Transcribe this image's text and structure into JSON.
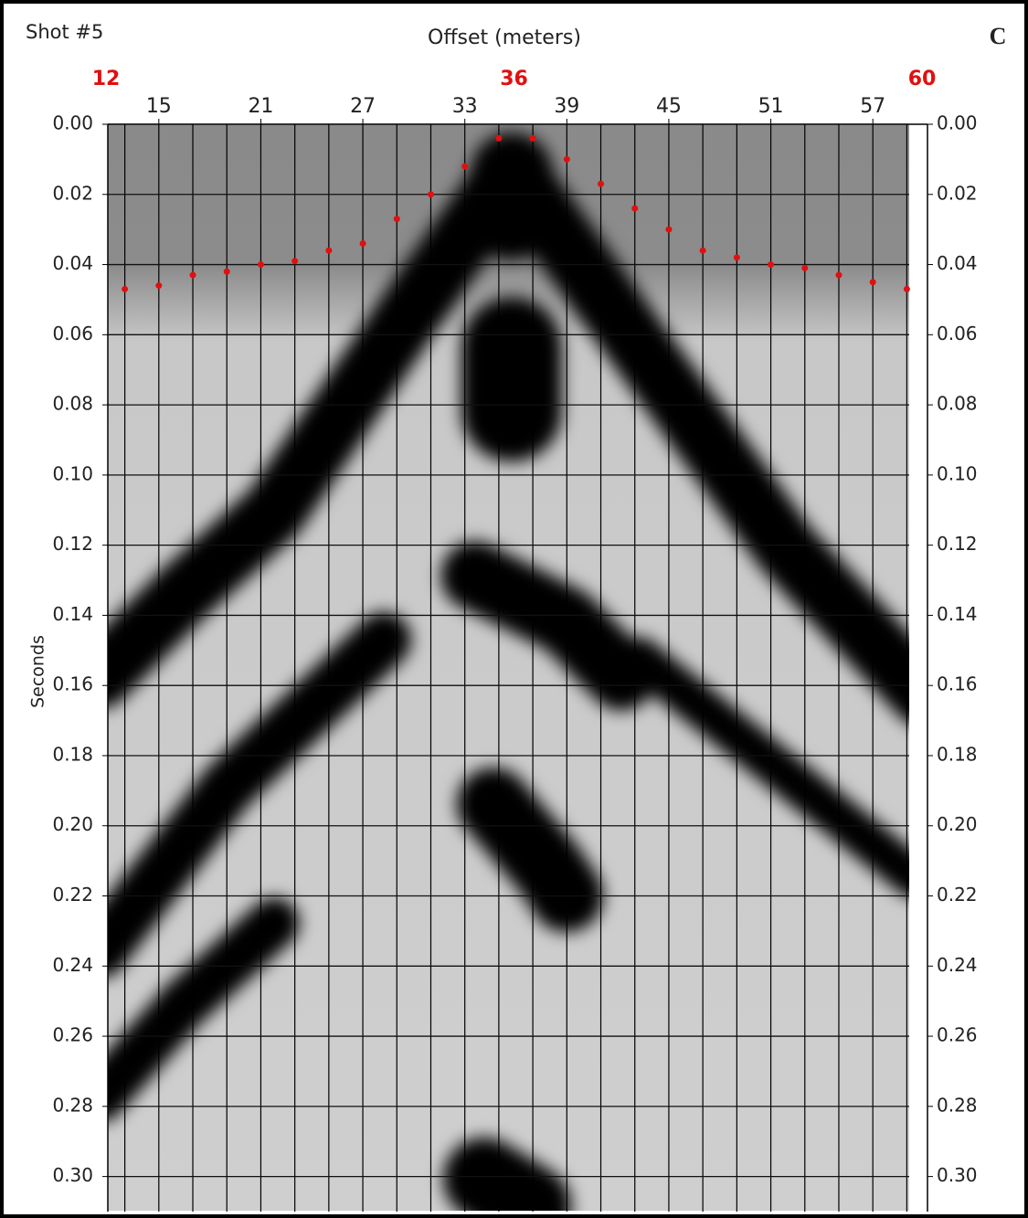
{
  "chart_data": {
    "type": "seismogram",
    "title": "Shot #5",
    "panel_label": "C",
    "x_label": "Offset (meters)",
    "y_label": "Seconds",
    "xlim": [
      12,
      60
    ],
    "ylim": [
      0,
      0.31
    ],
    "xticks": [
      15,
      21,
      27,
      33,
      39,
      45,
      51,
      57
    ],
    "xticks_highlight": [
      12,
      36,
      60
    ],
    "highlight_color": "#e01010",
    "yticks": [
      {
        "value": 0,
        "label": "0.00"
      },
      0.02,
      0.04,
      0.06,
      0.08,
      {
        "value": 0.1,
        "label": "0.10"
      },
      0.12,
      0.14,
      0.16,
      0.18,
      {
        "value": 0.2,
        "label": "0.20"
      },
      0.22,
      0.24,
      0.26,
      0.28,
      {
        "value": 0.3,
        "label": "0.30"
      }
    ],
    "grid": true,
    "x": [
      13,
      15,
      17,
      19,
      21,
      23,
      25,
      27,
      29,
      31,
      33,
      35,
      37,
      39,
      41,
      43,
      45,
      47,
      49,
      51,
      53,
      55,
      57,
      59
    ],
    "values": [
      0.047,
      0.046,
      0.043,
      0.042,
      0.04,
      0.039,
      0.036,
      0.034,
      0.027,
      0.02,
      0.012,
      0.004,
      0.004,
      0.01,
      0.017,
      0.024,
      0.03,
      0.036,
      0.038,
      0.04,
      0.041,
      0.043,
      0.045,
      0.047
    ],
    "color": "#e01010"
  }
}
